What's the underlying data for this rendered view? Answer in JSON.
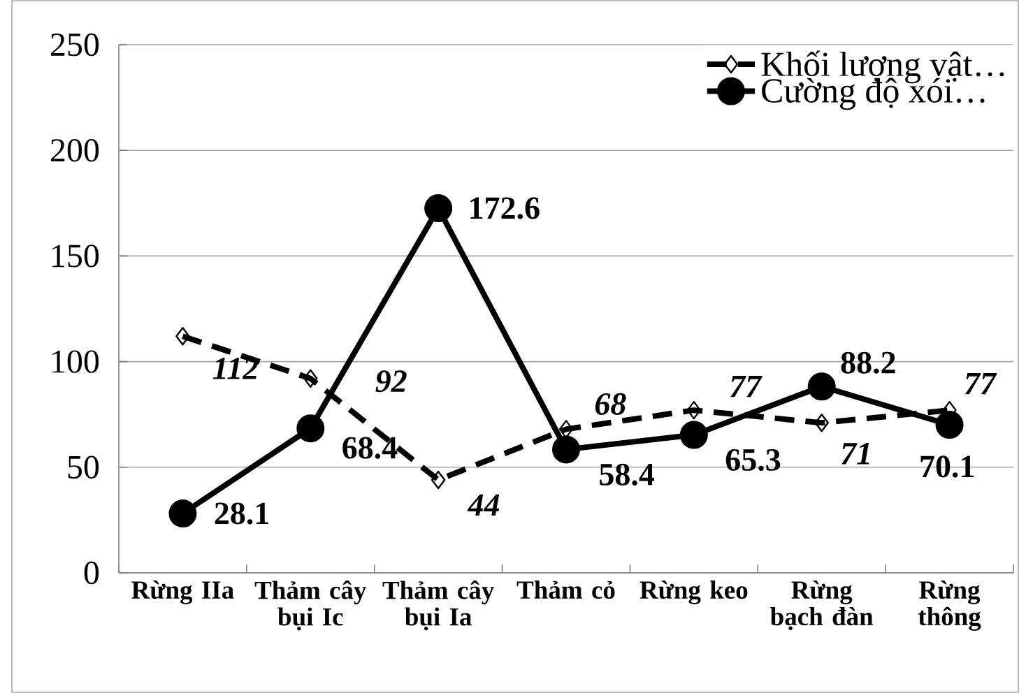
{
  "chart_data": {
    "type": "line",
    "categories": [
      "Rừng IIa",
      "Thảm cây bụi Ic",
      "Thảm cây bụi Ia",
      "Thảm cỏ",
      "Rừng keo",
      "Rừng bạch đàn",
      "Rừng thông"
    ],
    "series": [
      {
        "name": "Khối lượng vật…",
        "color": "#000000",
        "line_style": "dashed",
        "marker": "diamond",
        "values": [
          112,
          92,
          44,
          68,
          77,
          71,
          77
        ]
      },
      {
        "name": "Cường độ xói…",
        "color": "#000000",
        "line_style": "solid",
        "marker": "circle",
        "values": [
          28.1,
          68.4,
          172.6,
          58.4,
          65.3,
          88.2,
          70.1
        ]
      }
    ],
    "ylim": [
      0,
      250
    ],
    "yticks": [
      0,
      50,
      100,
      150,
      200,
      250
    ],
    "grid": "y",
    "legend": "top right",
    "data_labels": true
  }
}
